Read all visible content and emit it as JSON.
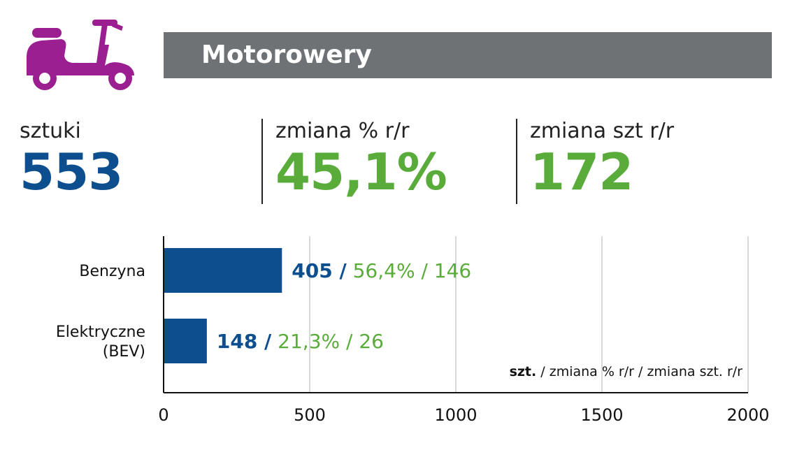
{
  "header": {
    "title": "Motorowery",
    "icon": "scooter-icon",
    "icon_color": "#9c1f92",
    "bar_color": "#6e7274"
  },
  "kpis": [
    {
      "label": "sztuki",
      "value": "553",
      "color": "#0d4f8e"
    },
    {
      "label": "zmiana % r/r",
      "value": "45,1%",
      "color": "#5aac3a"
    },
    {
      "label": "zmiana szt r/r",
      "value": "172",
      "color": "#5aac3a"
    }
  ],
  "chart_data": {
    "type": "bar",
    "orientation": "horizontal",
    "categories": [
      "Benzyna",
      "Elektryczne (BEV)"
    ],
    "category_lines": [
      [
        "Benzyna"
      ],
      [
        "Elektryczne",
        "(BEV)"
      ]
    ],
    "values": [
      405,
      148
    ],
    "units_labels": [
      "405 /",
      "148 /"
    ],
    "change_labels": [
      " 56,4% / 146",
      " 21,3% / 26"
    ],
    "xlim": [
      0,
      2000
    ],
    "xticks": [
      0,
      500,
      1000,
      1500,
      2000
    ],
    "xtick_labels": [
      "0",
      "500",
      "1000",
      "1500",
      "2000"
    ],
    "grid": true,
    "legend": {
      "bold": "szt.",
      "rest": " / zmiana % r/r / zmiana szt. r/r"
    },
    "colors": {
      "bar": "#0d4f8e",
      "units": "#0d4f8e",
      "change": "#5aac3a",
      "grid": "#d9d9d9",
      "axis": "#111111"
    }
  }
}
